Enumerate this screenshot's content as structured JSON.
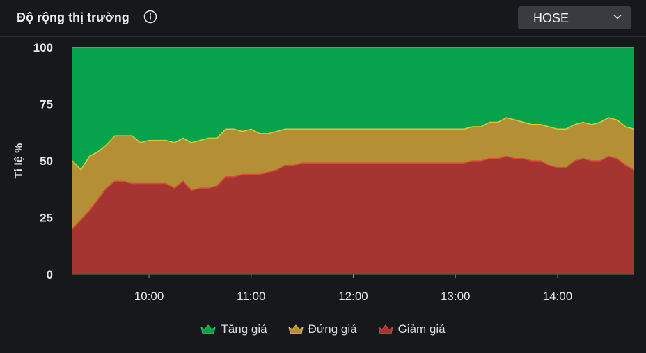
{
  "header": {
    "title": "Độ rộng thị trường",
    "info_icon": "info-circle-icon",
    "exchange": {
      "selected": "HOSE",
      "icon": "chevron-down-icon"
    }
  },
  "colors": {
    "background": "#17181b",
    "grid": "#4a4b50",
    "tang": "#06a24c",
    "tang_line": "#22c86a",
    "dung": "#b48f35",
    "dung_line": "#e2c43b",
    "giam": "#a43530",
    "giam_line": "#d84a3e",
    "text": "#e6e6e6"
  },
  "chart_data": {
    "type": "area",
    "stacked": true,
    "ylabel": "Tỉ lệ %",
    "ylim": [
      0,
      100
    ],
    "yticks": [
      "0",
      "25",
      "50",
      "75",
      "100"
    ],
    "xlim": [
      "09:15",
      "14:45"
    ],
    "xticks": [
      "10:00",
      "11:00",
      "12:00",
      "13:00",
      "14:00"
    ],
    "grid": false,
    "legend": {
      "position": "bottom",
      "marker": "crown-shape"
    },
    "x": [
      "09:15",
      "09:20",
      "09:25",
      "09:30",
      "09:35",
      "09:40",
      "09:45",
      "09:50",
      "09:55",
      "10:00",
      "10:05",
      "10:10",
      "10:15",
      "10:20",
      "10:25",
      "10:30",
      "10:35",
      "10:40",
      "10:45",
      "10:50",
      "10:55",
      "11:00",
      "11:05",
      "11:10",
      "11:15",
      "11:20",
      "11:25",
      "11:30",
      "12:00",
      "13:00",
      "13:05",
      "13:10",
      "13:15",
      "13:20",
      "13:25",
      "13:30",
      "13:35",
      "13:40",
      "13:45",
      "13:50",
      "13:55",
      "14:00",
      "14:05",
      "14:10",
      "14:15",
      "14:20",
      "14:25",
      "14:30",
      "14:35",
      "14:40",
      "14:45"
    ],
    "series": [
      {
        "name": "Giảm giá",
        "values": [
          20,
          24,
          28,
          33,
          38,
          41,
          41,
          40,
          40,
          40,
          40,
          40,
          38,
          41,
          37,
          38,
          38,
          39,
          43,
          43,
          44,
          44,
          44,
          45,
          46,
          48,
          48,
          49,
          49,
          49,
          49,
          50,
          50,
          51,
          51,
          52,
          51,
          51,
          50,
          50,
          48,
          47,
          47,
          50,
          51,
          50,
          50,
          52,
          51,
          48,
          46
        ]
      },
      {
        "name": "Đứng giá",
        "values": [
          30,
          22,
          24,
          21,
          19,
          20,
          20,
          21,
          18,
          19,
          19,
          19,
          20,
          19,
          21,
          21,
          22,
          21,
          21,
          21,
          19,
          20,
          18,
          17,
          17,
          16,
          16,
          15,
          15,
          15,
          15,
          15,
          15,
          16,
          16,
          17,
          17,
          16,
          16,
          16,
          17,
          17,
          17,
          16,
          16,
          16,
          17,
          17,
          17,
          17,
          18
        ]
      },
      {
        "name": "Tăng giá",
        "values": [
          50,
          54,
          48,
          46,
          43,
          39,
          39,
          39,
          42,
          41,
          41,
          41,
          42,
          40,
          42,
          41,
          40,
          40,
          36,
          36,
          37,
          36,
          38,
          38,
          37,
          36,
          36,
          36,
          36,
          36,
          36,
          35,
          35,
          33,
          33,
          31,
          32,
          33,
          34,
          34,
          35,
          36,
          36,
          34,
          33,
          34,
          33,
          31,
          32,
          35,
          36
        ]
      }
    ]
  }
}
